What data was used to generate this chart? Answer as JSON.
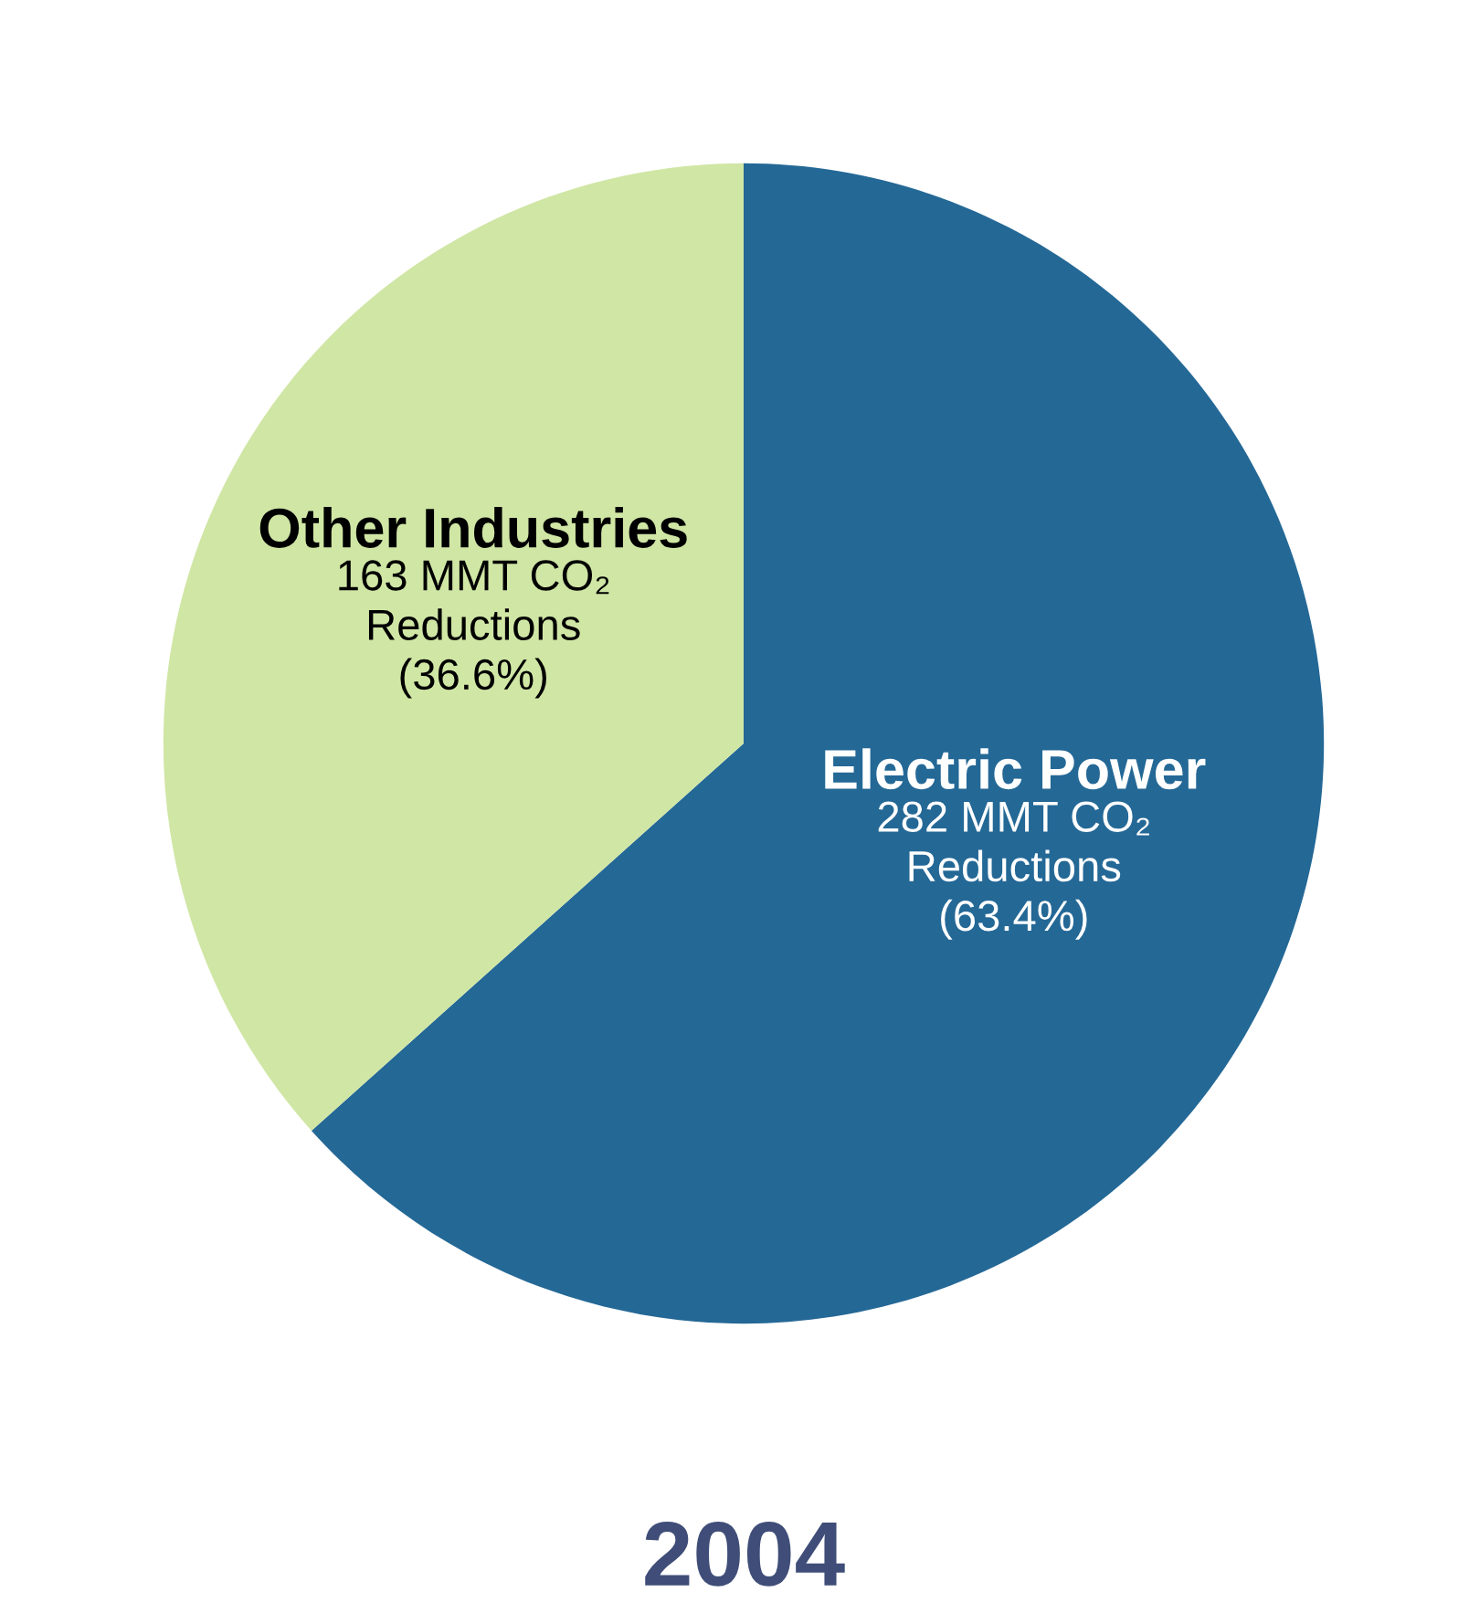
{
  "chart_data": {
    "type": "pie",
    "title": "2004",
    "categories": [
      "Electric Power",
      "Other Industries"
    ],
    "values": [
      282,
      163
    ],
    "colors": [
      "#246896",
      "#d0e6a5"
    ],
    "value_labels": [
      "282 MMT CO₂\nReductions\n(63.4%)",
      "163 MMT CO₂\nReductions\n(36.6%)"
    ]
  }
}
